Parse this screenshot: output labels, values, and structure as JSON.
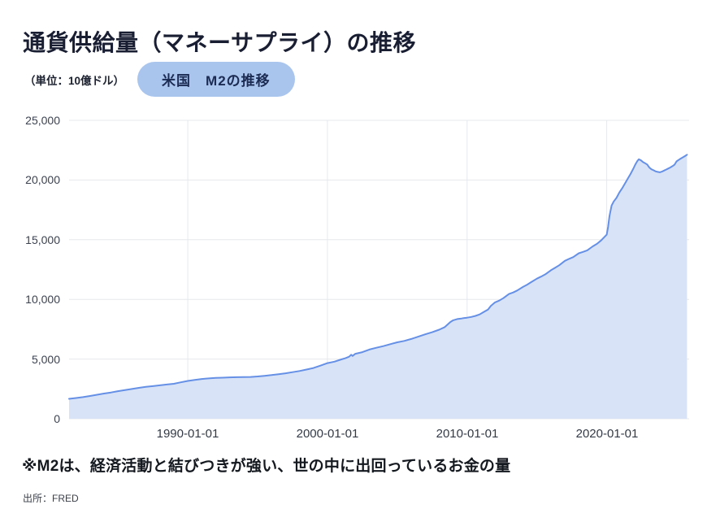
{
  "header": {
    "title": "通貨供給量（マネーサプライ）の推移",
    "unit": "（単位：10億ドル）",
    "badge": "米国　M2の推移"
  },
  "footer": {
    "note": "※M2は、経済活動と結びつきが強い、世の中に出回っているお金の量",
    "source": "出所：FRED"
  },
  "colors": {
    "badge_bg": "#a9c5ee",
    "badge_text": "#1c2b52",
    "title_text": "#191e33"
  },
  "chart_data": {
    "type": "area",
    "title": "米国 M2の推移",
    "ylabel": "10億ドル (billions USD)",
    "xlabel": "",
    "source": "FRED",
    "grid": true,
    "legend": false,
    "x_range": [
      1981.5,
      2025.9
    ],
    "y_range": [
      0,
      25000
    ],
    "yticks": [
      0,
      5000,
      10000,
      15000,
      20000,
      25000
    ],
    "ytick_labels": [
      "0",
      "5,000",
      "10,000",
      "15,000",
      "20,000",
      "25,000"
    ],
    "xticks": [
      {
        "year": 1990,
        "label": "1990-01-01"
      },
      {
        "year": 2000,
        "label": "2000-01-01"
      },
      {
        "year": 2010,
        "label": "2010-01-01"
      },
      {
        "year": 2020,
        "label": "2020-01-01"
      }
    ],
    "colors": {
      "line": "#6590e5",
      "fill": "#d9e3f8",
      "grid": "#e6e8ec"
    },
    "series": [
      {
        "name": "US M2 money stock",
        "points": [
          [
            1981.5,
            1670
          ],
          [
            1982,
            1740
          ],
          [
            1982.5,
            1810
          ],
          [
            1983,
            1910
          ],
          [
            1983.5,
            2010
          ],
          [
            1984,
            2110
          ],
          [
            1984.5,
            2200
          ],
          [
            1985,
            2310
          ],
          [
            1985.5,
            2400
          ],
          [
            1986,
            2490
          ],
          [
            1986.5,
            2590
          ],
          [
            1987,
            2670
          ],
          [
            1987.5,
            2730
          ],
          [
            1988,
            2800
          ],
          [
            1988.5,
            2870
          ],
          [
            1989,
            2930
          ],
          [
            1989.5,
            3050
          ],
          [
            1990,
            3170
          ],
          [
            1990.5,
            3250
          ],
          [
            1991,
            3330
          ],
          [
            1991.5,
            3380
          ],
          [
            1992,
            3420
          ],
          [
            1992.5,
            3440
          ],
          [
            1993,
            3470
          ],
          [
            1993.5,
            3480
          ],
          [
            1994,
            3490
          ],
          [
            1994.5,
            3500
          ],
          [
            1995,
            3540
          ],
          [
            1995.5,
            3600
          ],
          [
            1996,
            3660
          ],
          [
            1996.5,
            3730
          ],
          [
            1997,
            3810
          ],
          [
            1997.5,
            3900
          ],
          [
            1998,
            4000
          ],
          [
            1998.5,
            4120
          ],
          [
            1999,
            4250
          ],
          [
            1999.5,
            4450
          ],
          [
            2000,
            4660
          ],
          [
            2000.5,
            4780
          ],
          [
            2001,
            4970
          ],
          [
            2001.3,
            5080
          ],
          [
            2001.55,
            5200
          ],
          [
            2001.7,
            5360
          ],
          [
            2001.8,
            5260
          ],
          [
            2002,
            5440
          ],
          [
            2002.5,
            5580
          ],
          [
            2003,
            5800
          ],
          [
            2003.5,
            5950
          ],
          [
            2004,
            6080
          ],
          [
            2004.5,
            6250
          ],
          [
            2005,
            6400
          ],
          [
            2005.5,
            6520
          ],
          [
            2006,
            6680
          ],
          [
            2006.5,
            6870
          ],
          [
            2007,
            7070
          ],
          [
            2007.5,
            7250
          ],
          [
            2008,
            7460
          ],
          [
            2008.4,
            7680
          ],
          [
            2008.8,
            8100
          ],
          [
            2009,
            8250
          ],
          [
            2009.3,
            8350
          ],
          [
            2009.6,
            8400
          ],
          [
            2009.8,
            8440
          ],
          [
            2010,
            8470
          ],
          [
            2010.3,
            8530
          ],
          [
            2010.6,
            8620
          ],
          [
            2010.9,
            8740
          ],
          [
            2011.2,
            8950
          ],
          [
            2011.5,
            9150
          ],
          [
            2011.7,
            9450
          ],
          [
            2012,
            9750
          ],
          [
            2012.3,
            9900
          ],
          [
            2012.6,
            10100
          ],
          [
            2013,
            10450
          ],
          [
            2013.3,
            10580
          ],
          [
            2013.6,
            10750
          ],
          [
            2014,
            11040
          ],
          [
            2014.3,
            11230
          ],
          [
            2014.6,
            11450
          ],
          [
            2015,
            11740
          ],
          [
            2015.3,
            11910
          ],
          [
            2015.6,
            12100
          ],
          [
            2016,
            12440
          ],
          [
            2016.3,
            12640
          ],
          [
            2016.6,
            12860
          ],
          [
            2017,
            13230
          ],
          [
            2017.3,
            13390
          ],
          [
            2017.6,
            13540
          ],
          [
            2018,
            13860
          ],
          [
            2018.3,
            13980
          ],
          [
            2018.6,
            14110
          ],
          [
            2019,
            14440
          ],
          [
            2019.3,
            14650
          ],
          [
            2019.6,
            14940
          ],
          [
            2020,
            15420
          ],
          [
            2020.1,
            16080
          ],
          [
            2020.2,
            16980
          ],
          [
            2020.35,
            17860
          ],
          [
            2020.5,
            18200
          ],
          [
            2020.7,
            18500
          ],
          [
            2020.9,
            18950
          ],
          [
            2021.1,
            19300
          ],
          [
            2021.3,
            19700
          ],
          [
            2021.5,
            20100
          ],
          [
            2021.7,
            20500
          ],
          [
            2021.9,
            20950
          ],
          [
            2022.05,
            21300
          ],
          [
            2022.2,
            21600
          ],
          [
            2022.3,
            21740
          ],
          [
            2022.45,
            21650
          ],
          [
            2022.6,
            21500
          ],
          [
            2022.75,
            21400
          ],
          [
            2022.9,
            21300
          ],
          [
            2023.05,
            21050
          ],
          [
            2023.2,
            20900
          ],
          [
            2023.35,
            20820
          ],
          [
            2023.5,
            20720
          ],
          [
            2023.65,
            20680
          ],
          [
            2023.8,
            20650
          ],
          [
            2023.95,
            20700
          ],
          [
            2024.1,
            20790
          ],
          [
            2024.25,
            20870
          ],
          [
            2024.4,
            20960
          ],
          [
            2024.55,
            21050
          ],
          [
            2024.7,
            21160
          ],
          [
            2024.85,
            21280
          ],
          [
            2025,
            21560
          ],
          [
            2025.15,
            21680
          ],
          [
            2025.3,
            21800
          ],
          [
            2025.45,
            21900
          ],
          [
            2025.6,
            22000
          ],
          [
            2025.75,
            22120
          ]
        ]
      }
    ]
  }
}
